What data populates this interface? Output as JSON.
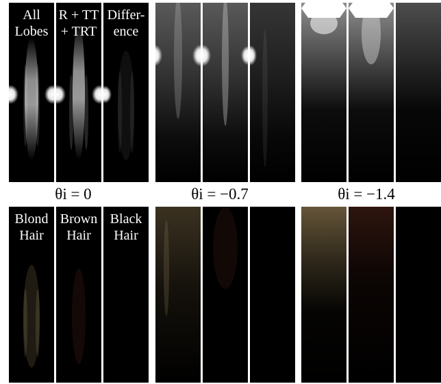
{
  "figure": {
    "row_top_labels": [
      "All\nLobes",
      "R + TT\n+ TRT",
      "Differ-\nence"
    ],
    "row_bottom_labels": [
      "Blond\nHair",
      "Brown\nHair",
      "Black\nHair"
    ],
    "theta_labels": [
      "θi = 0",
      "θi = −0.7",
      "θi = −1.4"
    ],
    "colors": {
      "highlight": "#ffffff",
      "blond_tint": "#6b5a3c",
      "brown_tint": "#3a1a12",
      "background": "#000000"
    }
  }
}
